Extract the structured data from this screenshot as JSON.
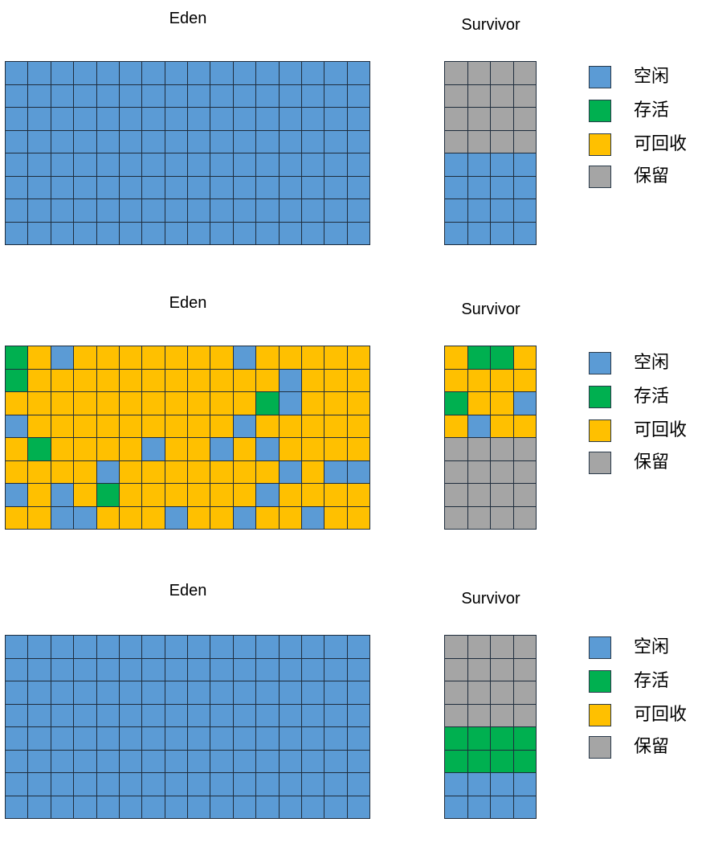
{
  "colors": {
    "free": "#5b9bd5",
    "alive": "#00b050",
    "reclaimable": "#ffc000",
    "reserved": "#a5a5a5"
  },
  "legend": [
    {
      "key": "free",
      "label": "空闲"
    },
    {
      "key": "alive",
      "label": "存活"
    },
    {
      "key": "reclaimable",
      "label": "可回收"
    },
    {
      "key": "reserved",
      "label": "保留"
    }
  ],
  "panels": [
    {
      "eden_title": "Eden",
      "survivor_title": "Survivor",
      "eden": [
        "BBBBBBBBBBBBBBBB",
        "BBBBBBBBBBBBBBBB",
        "BBBBBBBBBBBBBBBB",
        "BBBBBBBBBBBBBBBB",
        "BBBBBBBBBBBBBBBB",
        "BBBBBBBBBBBBBBBB",
        "BBBBBBBBBBBBBBBB",
        "BBBBBBBBBBBBBBBB"
      ],
      "survivor": [
        "RRRR",
        "RRRR",
        "RRRR",
        "RRRR",
        "BBBB",
        "BBBB",
        "BBBB",
        "BBBB"
      ]
    },
    {
      "eden_title": "Eden",
      "survivor_title": "Survivor",
      "eden": [
        "GYBYYYYYYYBYYYYY",
        "GYYYYYYYYYYYBYYY",
        "YYYYYYYYYYYGBYYY",
        "BYYYYYYYYYBYYYYY",
        "YGYYYYBYYBYBYYYY",
        "YYYYBYYYYYYYBYBB",
        "BYBYGYYYYYYBYYYY",
        "YYBBYYYBYYBYYBYY"
      ],
      "survivor": [
        "YGGY",
        "YYYY",
        "GYYB",
        "YBYY",
        "RRRR",
        "RRRR",
        "RRRR",
        "RRRR"
      ]
    },
    {
      "eden_title": "Eden",
      "survivor_title": "Survivor",
      "eden": [
        "BBBBBBBBBBBBBBBB",
        "BBBBBBBBBBBBBBBB",
        "BBBBBBBBBBBBBBBB",
        "BBBBBBBBBBBBBBBB",
        "BBBBBBBBBBBBBBBB",
        "BBBBBBBBBBBBBBBB",
        "BBBBBBBBBBBBBBBB",
        "BBBBBBBBBBBBBBBB"
      ],
      "survivor": [
        "RRRR",
        "RRRR",
        "RRRR",
        "RRRR",
        "GGGG",
        "GGGG",
        "BBBB",
        "BBBB"
      ]
    }
  ]
}
